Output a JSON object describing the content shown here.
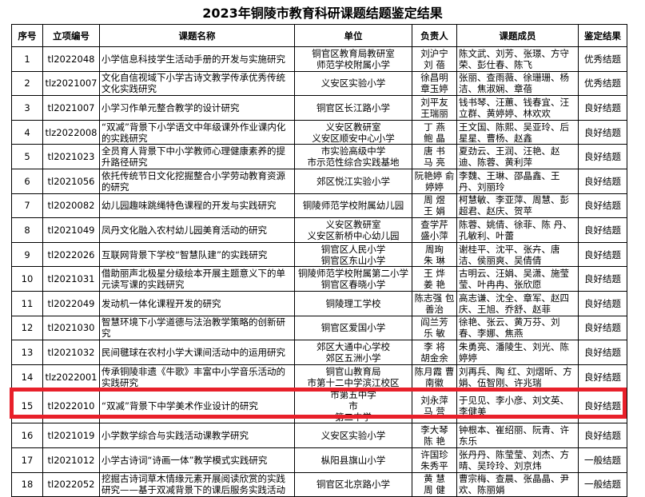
{
  "title": "2023年铜陵市教育科研课题结题鉴定结果",
  "headers": [
    "序号",
    "立项编号",
    "课题名称",
    "单位",
    "负责人",
    "课题成员",
    "鉴定结果"
  ],
  "highlight_color": "#e8202a",
  "rows": [
    {
      "no": "1",
      "code": "tl2022048",
      "name": "小学信息科技学生活动手册的开发与实施研究",
      "unit": "铜官区教育局教研室\n师范学校附属小学",
      "lead": "刘沪宁\n刘 蓓",
      "members": "陈文武、刘芳、张璟、方守荣、彭仕春、陈飞",
      "result": "优秀结题"
    },
    {
      "no": "2",
      "code": "tlz2021007",
      "name": "文化自信视域下小学古诗文教学传承优秀传统文化实践研究",
      "unit": "义安区实验小学",
      "lead": "徐昌明\n章玉婷",
      "members": "张丽、查雨薇、徐珊珊、杨洁、焦淑娴、章蓓",
      "result": "优秀结题"
    },
    {
      "no": "3",
      "code": "tl2021007",
      "name": "小学习作单元整合教学的设计研究",
      "unit": "铜官区长江路小学",
      "lead": "刘平友\n王瑞丽",
      "members": "钱书琴、汪蕙、钱春宜、汪立群、黄婷婷、林欢欢",
      "result": "良好结题"
    },
    {
      "no": "4",
      "code": "tlz2022008",
      "name": "“双减”背景下小学语文中年级课外作业课内化的实践研究",
      "unit": "义安区教研室\n义安区顺安中心小学",
      "lead": "丁 燕\n鲍 晶",
      "members": "王文国、陈熙、吴亚玲、后星星、曹杨、赵鑫",
      "result": "良好结题"
    },
    {
      "no": "5",
      "code": "tl2021023",
      "name": "全员育人背景下中小学教师心理健康素养的提升路径研究",
      "unit": "市实验高级中学\n市示范性综合实践基地",
      "lead": "唐 书\n马 亮",
      "members": "夏劲云、王润、汪艳、赵迪、陈蓉、黄利萍",
      "result": "良好结题"
    },
    {
      "no": "6",
      "code": "tl2021056",
      "name": "依托传统节日文化挖掘整合小学劳动教育资源的研究",
      "unit": "郊区悦江实验小学",
      "lead": "阮艳婷 俞婷婷",
      "members": "李魏、王琳、邵晶鑫、王丹、刘丽玲",
      "result": "良好结题"
    },
    {
      "no": "7",
      "code": "tl2020082",
      "name": "幼儿园趣味跳绳特色课程的开发与实践研究",
      "unit": "铜陵师范学校附属幼儿园",
      "lead": "周 煜\n王 娟",
      "members": "柯慧敏、李亚萍、周慧、彭超君、赵庆、贺苹",
      "result": "良好结题"
    },
    {
      "no": "8",
      "code": "tl2021049",
      "name": "凤丹文化融入农村幼儿园美育活动的研究",
      "unit": "义安区教研室\n义安区新桥中心幼儿园",
      "lead": "查学芹\n盛小萍",
      "members": "陈蓉、姚倩、徐菲、陈 丹、孔敏利、叶蕾",
      "result": "良好结题"
    },
    {
      "no": "9",
      "code": "tl2022026",
      "name": "互联网背景下学校“智慧队建”的实践研究",
      "unit": "铜官区人民小学\n铜官区东山小学",
      "lead": "周珣\n朱 琳",
      "members": "谢桂平、沈平、张卉、唐洁、侯丽爽、吴倩倩",
      "result": "良好结题"
    },
    {
      "no": "10",
      "code": "tl2021031",
      "name": "借助丽声北极星分级绘本开展主题意义下的单元读写课的实践研究",
      "unit": "铜陵师范学校附属第二小学\n铜官区春晓小学",
      "lead": "王 烨\n姜 艳",
      "members": "古明云、汪娟、吴潇、施莹莹、叶冉冉、张欣愿",
      "result": "良好结题"
    },
    {
      "no": "11",
      "code": "tl2022049",
      "name": "发动机一体化课程开发的研究",
      "unit": "铜陵理工学校",
      "lead": "陈志强 包善治",
      "members": "高志谦、沈全、章军、赵四庆、王旭、乔舒、赵菲",
      "result": "良好结题"
    },
    {
      "no": "12",
      "code": "tl2021030",
      "name": "智慧环境下小学道德与法治教学策略的创新研究",
      "unit": "铜官区爱国小学",
      "lead": "阎兰芳\n乐 敏",
      "members": "徐艳、张云、黄万芬、刘春、李娜、焦燕",
      "result": "良好结题"
    },
    {
      "no": "13",
      "code": "tl2021032",
      "name": "民间毽球在农村小学大课间活动中的运用研究",
      "unit": "郊区大通中心学校\n郊区五洲小学",
      "lead": "李 将\n胡金余",
      "members": "朱勇亮、潘陵生、刘光、陈婷婷",
      "result": "良好结题"
    },
    {
      "no": "14",
      "code": "tlz2022001",
      "name": "传承铜陵非遗《牛歌》丰富中小学音乐活动的实践研究",
      "unit": "铜官山教育局\n市第十二中学滨江校区",
      "lead": "陈月霞 曹南徽",
      "members": "刘再兵、陶 红、刘熠昕、方娟、伍智刚、许兆瑞",
      "result": "良好结题"
    },
    {
      "no": "15",
      "code": "tl2022010",
      "name": "“双减”背景下中学美术作业设计的研究",
      "unit": "市第五中学　　　　　　　市\n第二中学",
      "lead": "刘永萍\n马 营",
      "members": "于见见、李小彦、刘文英、李健美",
      "result": "良好结题"
    },
    {
      "no": "16",
      "code": "tl2021019",
      "name": "小学数学综合与实践活动课教学研究",
      "unit": "义安区实验小学",
      "lead": "李大琴\n陈 艳",
      "members": "钟根本、崔绍丽、阮青、许东乐",
      "result": "良好结题"
    },
    {
      "no": "17",
      "code": "tl2021012",
      "name": "小学古诗词“诗画一体”教学模式实践研究",
      "unit": "枞阳县旗山小学",
      "lead": "许国珍\n朱秀平",
      "members": "张丹丹、陈莹莹、刘杰、方晴、吴玲玲、刘京炜",
      "result": "一般结题"
    },
    {
      "no": "18",
      "code": "tl2022052",
      "name": "挖掘古诗词草木情缘元素开展阅读欣赏的实践研究——基于双减背景下的课后服务实践活动",
      "unit": "铜官区北京路小学",
      "lead": "黄 慧\n周 健",
      "members": "曹宗梅、查晨、张晶晶、尹欢、陈丽娟",
      "result": "一般结题"
    }
  ]
}
